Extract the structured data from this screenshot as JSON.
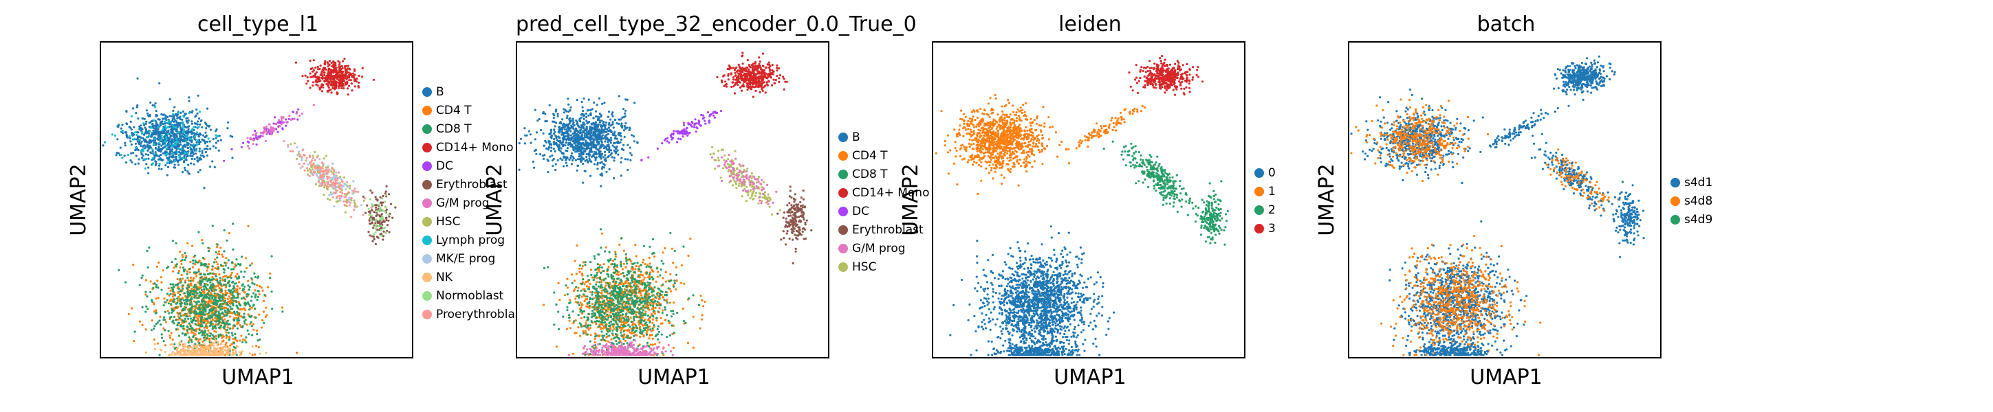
{
  "chart_data": [
    {
      "type": "scatter",
      "title": "cell_type_l1",
      "xlabel": "UMAP1",
      "ylabel": "UMAP2",
      "legend_position": "right",
      "categories": [
        {
          "name": "B",
          "color": "#1f77b4"
        },
        {
          "name": "CD4 T",
          "color": "#ff7f0e"
        },
        {
          "name": "CD8 T",
          "color": "#279e68"
        },
        {
          "name": "CD14+ Mono",
          "color": "#d62728"
        },
        {
          "name": "DC",
          "color": "#aa40fc"
        },
        {
          "name": "Erythroblast",
          "color": "#8c564b"
        },
        {
          "name": "G/M prog",
          "color": "#e377c2"
        },
        {
          "name": "HSC",
          "color": "#b5bd61"
        },
        {
          "name": "Lymph prog",
          "color": "#17becf"
        },
        {
          "name": "MK/E prog",
          "color": "#aec7e8"
        },
        {
          "name": "NK",
          "color": "#ffbb78"
        },
        {
          "name": "Normoblast",
          "color": "#98df8a"
        },
        {
          "name": "Proerythroblast",
          "color": "#ff9896"
        }
      ]
    },
    {
      "type": "scatter",
      "title": "pred_cell_type_32_encoder_0.0_True_0",
      "xlabel": "UMAP1",
      "ylabel": "UMAP2",
      "legend_position": "right",
      "categories": [
        {
          "name": "B",
          "color": "#1f77b4"
        },
        {
          "name": "CD4 T",
          "color": "#ff7f0e"
        },
        {
          "name": "CD8 T",
          "color": "#279e68"
        },
        {
          "name": "CD14+ Mono",
          "color": "#d62728"
        },
        {
          "name": "DC",
          "color": "#aa40fc"
        },
        {
          "name": "Erythroblast",
          "color": "#8c564b"
        },
        {
          "name": "G/M prog",
          "color": "#e377c2"
        },
        {
          "name": "HSC",
          "color": "#b5bd61"
        }
      ]
    },
    {
      "type": "scatter",
      "title": "leiden",
      "xlabel": "UMAP1",
      "ylabel": "UMAP2",
      "legend_position": "right",
      "categories": [
        {
          "name": "0",
          "color": "#1f77b4"
        },
        {
          "name": "1",
          "color": "#ff7f0e"
        },
        {
          "name": "2",
          "color": "#279e68"
        },
        {
          "name": "3",
          "color": "#d62728"
        }
      ]
    },
    {
      "type": "scatter",
      "title": "batch",
      "xlabel": "UMAP1",
      "ylabel": "UMAP2",
      "legend_position": "right",
      "categories": [
        {
          "name": "s4d1",
          "color": "#1f77b4"
        },
        {
          "name": "s4d8",
          "color": "#ff7f0e"
        },
        {
          "name": "s4d9",
          "color": "#279e68"
        }
      ]
    }
  ]
}
